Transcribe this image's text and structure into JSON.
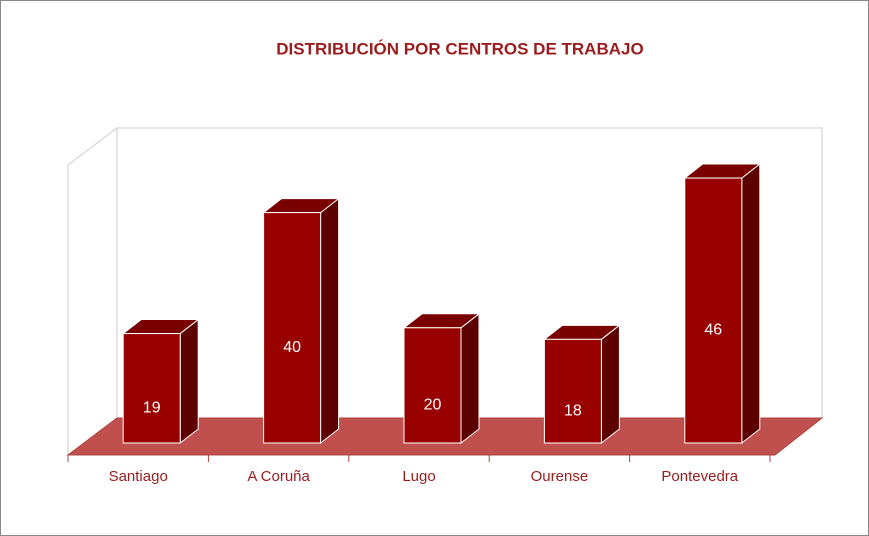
{
  "chart_data": {
    "type": "bar",
    "title": "DISTRIBUCIÓN POR CENTROS DE TRABAJO",
    "categories": [
      "Santiago",
      "A Coruña",
      "Lugo",
      "Ourense",
      "Pontevedra"
    ],
    "values": [
      19,
      40,
      20,
      18,
      46
    ],
    "color": "#990000"
  }
}
